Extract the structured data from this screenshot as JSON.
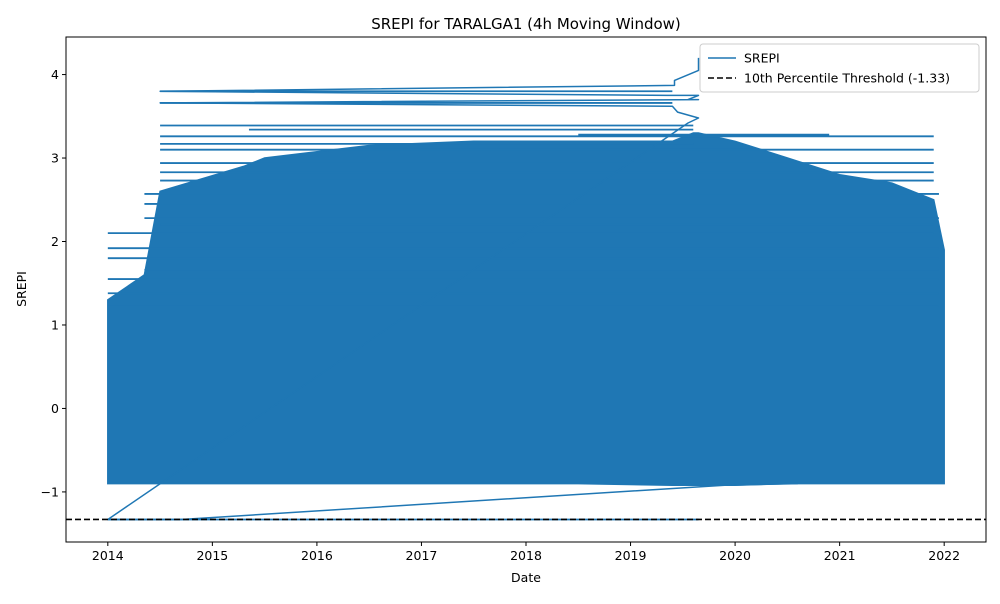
{
  "chart_data": {
    "type": "line",
    "title": "SREPI for TARALGA1 (4h Moving Window)",
    "xlabel": "Date",
    "ylabel": "SREPI",
    "xlim": [
      2013.6,
      2022.4
    ],
    "ylim": [
      -1.6,
      4.45
    ],
    "x_ticks": [
      2014,
      2015,
      2016,
      2017,
      2018,
      2019,
      2020,
      2021,
      2022
    ],
    "x_tick_labels": [
      "2014",
      "2015",
      "2016",
      "2017",
      "2018",
      "2019",
      "2020",
      "2021",
      "2022"
    ],
    "y_ticks": [
      -1,
      0,
      1,
      2,
      3,
      4
    ],
    "y_tick_labels": [
      "−1",
      "0",
      "1",
      "2",
      "3",
      "4"
    ],
    "grid": false,
    "legend_position": "upper-right",
    "series": [
      {
        "name": "SREPI",
        "color": "#1f77b4",
        "style": "solid",
        "envelope": {
          "x": [
            2014.0,
            2014.35,
            2014.5,
            2015.3,
            2015.5,
            2016.5,
            2017.5,
            2018.5,
            2019.4,
            2019.6,
            2019.65,
            2020.0,
            2020.5,
            2021.0,
            2021.5,
            2021.9,
            2022.0
          ],
          "upper": [
            1.3,
            1.6,
            2.6,
            2.9,
            3.0,
            3.15,
            3.2,
            3.2,
            3.2,
            3.3,
            3.3,
            3.2,
            3.0,
            2.8,
            2.7,
            2.5,
            1.9
          ],
          "lower": [
            -0.9,
            -0.9,
            -0.9,
            -0.9,
            -0.9,
            -0.9,
            -0.9,
            -0.9,
            -0.92,
            -0.92,
            -0.92,
            -0.92,
            -0.9,
            -0.9,
            -0.9,
            -0.9,
            -0.9
          ]
        },
        "wraps": [
          {
            "x0": 2014.5,
            "x1": 2019.4,
            "y": 3.8
          },
          {
            "x0": 2014.5,
            "x1": 2019.4,
            "y": 3.66
          },
          {
            "x0": 2014.5,
            "x1": 2019.6,
            "y": 3.39
          },
          {
            "x0": 2014.5,
            "x1": 2019.6,
            "y": 3.17
          },
          {
            "x0": 2015.35,
            "x1": 2019.6,
            "y": 3.34
          },
          {
            "x0": 2018.5,
            "x1": 2020.9,
            "y": 3.28
          },
          {
            "x0": 2014.5,
            "x1": 2021.9,
            "y": 3.26
          },
          {
            "x0": 2014.5,
            "x1": 2021.9,
            "y": 3.1
          },
          {
            "x0": 2014.5,
            "x1": 2021.9,
            "y": 2.94
          },
          {
            "x0": 2014.5,
            "x1": 2021.9,
            "y": 2.83
          },
          {
            "x0": 2014.5,
            "x1": 2021.9,
            "y": 2.73
          },
          {
            "x0": 2014.35,
            "x1": 2021.95,
            "y": 2.57
          },
          {
            "x0": 2014.35,
            "x1": 2021.9,
            "y": 2.45
          },
          {
            "x0": 2014.35,
            "x1": 2021.95,
            "y": 2.28
          },
          {
            "x0": 2014.5,
            "x1": 2021.9,
            "y": 2.2
          },
          {
            "x0": 2014.0,
            "x1": 2021.9,
            "y": 2.1
          },
          {
            "x0": 2014.0,
            "x1": 2021.95,
            "y": 1.92
          },
          {
            "x0": 2014.0,
            "x1": 2021.95,
            "y": 1.8
          },
          {
            "x0": 2014.35,
            "x1": 2021.95,
            "y": 1.66
          },
          {
            "x0": 2014.0,
            "x1": 2021.95,
            "y": 1.55
          },
          {
            "x0": 2014.0,
            "x1": 2021.95,
            "y": 1.38
          },
          {
            "x0": 2014.0,
            "x1": 2021.95,
            "y": 1.22
          },
          {
            "x0": 2014.0,
            "x1": 2019.65,
            "y": -1.33
          }
        ],
        "path": [
          {
            "x": 2019.65,
            "y": 4.2
          },
          {
            "x": 2019.65,
            "y": 4.05
          },
          {
            "x": 2019.42,
            "y": 3.93
          },
          {
            "x": 2019.42,
            "y": 3.87
          },
          {
            "x": 2014.5,
            "y": 3.8
          },
          {
            "x": 2019.35,
            "y": 3.75
          },
          {
            "x": 2019.65,
            "y": 3.75
          },
          {
            "x": 2019.55,
            "y": 3.7
          },
          {
            "x": 2019.65,
            "y": 3.7
          },
          {
            "x": 2014.5,
            "y": 3.66
          },
          {
            "x": 2019.4,
            "y": 3.62
          },
          {
            "x": 2019.45,
            "y": 3.55
          },
          {
            "x": 2019.65,
            "y": 3.48
          },
          {
            "x": 2019.55,
            "y": 3.42
          },
          {
            "x": 2014.0,
            "y": -1.33
          },
          {
            "x": 2014.7,
            "y": -1.33
          },
          {
            "x": 2019.9,
            "y": -0.92
          },
          {
            "x": 2020.6,
            "y": -0.9
          }
        ]
      },
      {
        "name": "10th Percentile Threshold (-1.33)",
        "color": "#000000",
        "style": "dashed",
        "y": -1.33
      }
    ]
  }
}
